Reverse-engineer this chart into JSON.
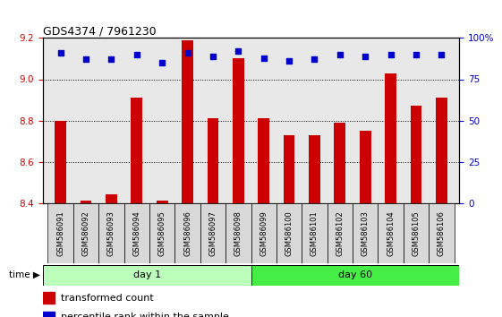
{
  "title": "GDS4374 / 7961230",
  "samples": [
    "GSM586091",
    "GSM586092",
    "GSM586093",
    "GSM586094",
    "GSM586095",
    "GSM586096",
    "GSM586097",
    "GSM586098",
    "GSM586099",
    "GSM586100",
    "GSM586101",
    "GSM586102",
    "GSM586103",
    "GSM586104",
    "GSM586105",
    "GSM586106"
  ],
  "bar_values": [
    8.8,
    8.41,
    8.44,
    8.91,
    8.41,
    9.19,
    8.81,
    9.1,
    8.81,
    8.73,
    8.73,
    8.79,
    8.75,
    9.03,
    8.87,
    8.91
  ],
  "percentile_values": [
    91,
    87,
    87,
    90,
    85,
    91,
    89,
    92,
    88,
    86,
    87,
    90,
    89,
    90,
    90,
    90
  ],
  "bar_color": "#cc0000",
  "percentile_color": "#0000cc",
  "ylim_left": [
    8.4,
    9.2
  ],
  "ylim_right": [
    0,
    100
  ],
  "yticks_left": [
    8.4,
    8.6,
    8.8,
    9.0,
    9.2
  ],
  "yticks_right": [
    0,
    25,
    50,
    75,
    100
  ],
  "ytick_labels_right": [
    "0",
    "25",
    "50",
    "75",
    "100%"
  ],
  "n_day1": 8,
  "n_day2": 8,
  "day1_label": "day 1",
  "day60_label": "day 60",
  "day1_color": "#bbffbb",
  "day60_color": "#44ee44",
  "time_label": "time",
  "legend_bar_label": "transformed count",
  "legend_pct_label": "percentile rank within the sample",
  "grid_color": "black",
  "xtick_bg_color": "#d8d8d8",
  "plot_bg_color": "#e8e8e8",
  "bar_bottom": 8.4,
  "bar_width": 0.45
}
